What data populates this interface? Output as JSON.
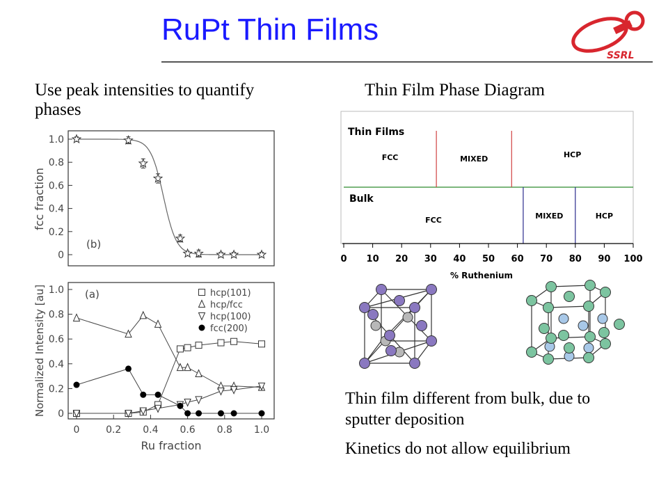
{
  "slide": {
    "title": "RuPt Thin Films",
    "logo_text": "SSRL",
    "left_caption": "Use peak intensities to quantify phases",
    "right_title": "Thin Film Phase Diagram",
    "note1": "Thin film different from bulk, due to sputter deposition",
    "note2": "Kinetics do not allow equilibrium"
  },
  "colors": {
    "title": "#1a1aff",
    "logo_red": "#d8262e",
    "thin_line": "#d04040",
    "bulk_line": "#2b2b8c",
    "divider": "#2e8b2e",
    "atom_purple": "#8a78c0",
    "atom_gray": "#b8b8b8",
    "atom_green": "#7cc4a0",
    "atom_blue": "#a8c8e8"
  },
  "chart_data": [
    {
      "type": "scatter",
      "panel_label": "(b)",
      "ylabel": "fcc fraction",
      "xlim": [
        0,
        1.0
      ],
      "ylim": [
        0,
        1.0
      ],
      "yticks": [
        "0",
        "0.2",
        "0.4",
        "0.6",
        "0.8",
        "1.0"
      ],
      "x": [
        0,
        0.28,
        0.36,
        0.44,
        0.56,
        0.6,
        0.66,
        0.78,
        0.85,
        1.0
      ],
      "y": [
        1.0,
        0.99,
        0.79,
        0.66,
        0.14,
        0.01,
        0.01,
        0.0,
        0.0,
        0.0
      ],
      "error": [
        0.02,
        0.03,
        0.04,
        0.04,
        0.03,
        0.02,
        0.03,
        0.02,
        0.02,
        0.02
      ],
      "fit": {
        "type": "sigmoid",
        "x0": 0.47,
        "k": 0.035
      }
    },
    {
      "type": "line",
      "panel_label": "(a)",
      "xlabel": "Ru fraction",
      "ylabel": "Normalized Intensity [au]",
      "xlim": [
        0,
        1.0
      ],
      "ylim": [
        0,
        1.0
      ],
      "xticks": [
        "0",
        "0.2",
        "0.4",
        "0.6",
        "0.8",
        "1.0"
      ],
      "yticks": [
        "0",
        "0.2",
        "0.4",
        "0.6",
        "0.8",
        "1.0"
      ],
      "legend_position": "top-right",
      "series": [
        {
          "name": "hcp(101)",
          "marker": "square",
          "x": [
            0,
            0.28,
            0.36,
            0.44,
            0.56,
            0.6,
            0.66,
            0.78,
            0.85,
            1.0
          ],
          "y": [
            0,
            0,
            0.01,
            0.07,
            0.52,
            0.53,
            0.55,
            0.57,
            0.58,
            0.56
          ]
        },
        {
          "name": "hcp/fcc",
          "marker": "triangle-up",
          "x": [
            0,
            0.28,
            0.36,
            0.44,
            0.56,
            0.6,
            0.66,
            0.78,
            0.85,
            1.0
          ],
          "y": [
            0.77,
            0.64,
            0.79,
            0.72,
            0.37,
            0.37,
            0.32,
            0.22,
            0.22,
            0.21
          ]
        },
        {
          "name": "hcp(100)",
          "marker": "triangle-down",
          "x": [
            0,
            0.28,
            0.36,
            0.44,
            0.56,
            0.6,
            0.66,
            0.78,
            0.85,
            1.0
          ],
          "y": [
            0,
            0,
            0.02,
            0.04,
            0.07,
            0.09,
            0.11,
            0.18,
            0.19,
            0.22
          ]
        },
        {
          "name": "fcc(200)",
          "marker": "circle-filled",
          "x": [
            0,
            0.28,
            0.36,
            0.44,
            0.56,
            0.6,
            0.66,
            0.78,
            0.85,
            1.0
          ],
          "y": [
            0.23,
            0.36,
            0.15,
            0.15,
            0.06,
            0.0,
            0.0,
            0.0,
            0.0,
            0.0
          ]
        }
      ]
    },
    {
      "type": "table",
      "xlabel": "% Ruthenium",
      "xlim": [
        0,
        100
      ],
      "xticks": [
        "0",
        "10",
        "20",
        "30",
        "40",
        "50",
        "60",
        "70",
        "80",
        "90",
        "100"
      ],
      "rows": [
        {
          "name": "Thin Films",
          "boundaries": [
            32,
            58
          ],
          "phases": [
            {
              "label": "FCC",
              "from": 0,
              "to": 32
            },
            {
              "label": "MIXED",
              "from": 32,
              "to": 58
            },
            {
              "label": "HCP",
              "from": 58,
              "to": 100
            }
          ]
        },
        {
          "name": "Bulk",
          "boundaries": [
            62,
            80
          ],
          "phases": [
            {
              "label": "FCC",
              "from": 0,
              "to": 62
            },
            {
              "label": "MIXED",
              "from": 62,
              "to": 80
            },
            {
              "label": "HCP",
              "from": 80,
              "to": 100
            }
          ]
        }
      ]
    }
  ]
}
